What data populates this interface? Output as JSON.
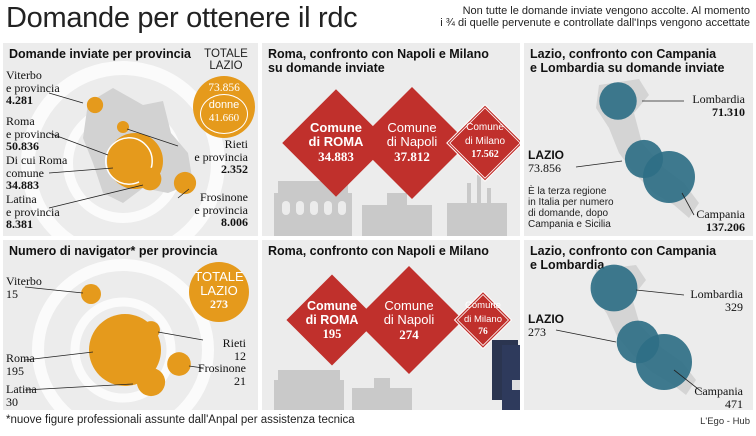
{
  "header": {
    "title": "Domande per ottenere il rdc",
    "subtitle_line1": "Non tutte le domande inviate vengono accolte. Al momento",
    "subtitle_line2": "i  ¾  di quelle pervenute e controllate dall'Inps vengono accettate"
  },
  "colors": {
    "orange": "#e59a1c",
    "red": "#c0302c",
    "blue": "#2f6f86",
    "panel_bg": "#ececec"
  },
  "panels": {
    "p1": {
      "title": "Domande inviate per provincia",
      "totale_label_1": "TOTALE",
      "totale_label_2": "LAZIO",
      "totale_value": "73.856",
      "donne_label": "donne",
      "donne_value": "41.660"
    },
    "p2": {
      "title_1": "Roma, confronto con Napoli e Milano",
      "title_2": "su domande inviate"
    },
    "p3": {
      "title_1": "Lazio, confronto con Campania",
      "title_2": "e Lombardia su domande inviate",
      "note_1": "È la terza regione",
      "note_2": "in Italia per numero",
      "note_3": "di domande, dopo",
      "note_4": "Campania e Sicilia"
    },
    "p4": {
      "title": "Numero di navigator* per provincia",
      "totale_label_1": "TOTALE",
      "totale_label_2": "LAZIO",
      "totale_value": "273"
    },
    "p5": {
      "title": "Roma, confronto con Napoli e Milano"
    },
    "p6": {
      "title_1": "Lazio, confronto con Campania",
      "title_2": "e Lombardia"
    }
  },
  "labels": {
    "viterbo_1": "Viterbo",
    "viterbo_2": "e provincia",
    "roma_1": "Roma",
    "roma_2": "e provincia",
    "di_cui_1": "Di cui Roma",
    "di_cui_2": "comune",
    "latina_1": "Latina",
    "latina_2": "e provincia",
    "rieti_1": "Rieti",
    "rieti_2": "e provincia",
    "frosinone_1": "Frosinone",
    "frosinone_2": "e provincia",
    "viterbo": "Viterbo",
    "roma": "Roma",
    "latina": "Latina",
    "rieti": "Rieti",
    "frosinone": "Frosinone",
    "comune_di": "Comune",
    "di_roma": "di ROMA",
    "di_napoli": "di Napoli",
    "di_milano": "di Milano",
    "lombardia": "Lombardia",
    "lazio": "LAZIO",
    "campania": "Campania"
  },
  "chart_data": [
    {
      "type": "bubble",
      "title": "Domande inviate per provincia",
      "categories": [
        "Viterbo e provincia",
        "Roma e provincia",
        "Di cui Roma comune",
        "Latina e provincia",
        "Rieti e provincia",
        "Frosinone e provincia"
      ],
      "values": [
        4281,
        50836,
        34883,
        8381,
        2352,
        8006
      ],
      "labels": [
        "4.281",
        "50.836",
        "34.883",
        "8.381",
        "2.352",
        "8.006"
      ],
      "total": "73.856",
      "donne": "41.660"
    },
    {
      "type": "diamond",
      "title": "Roma, confronto con Napoli e Milano su domande inviate",
      "categories": [
        "Comune di ROMA",
        "Comune di Napoli",
        "Comune di Milano"
      ],
      "values": [
        34883,
        37812,
        17562
      ],
      "labels": [
        "34.883",
        "37.812",
        "17.562"
      ]
    },
    {
      "type": "bubble-map",
      "title": "Lazio, confronto con Campania e Lombardia su domande inviate",
      "categories": [
        "Lombardia",
        "LAZIO",
        "Campania"
      ],
      "values": [
        71310,
        73856,
        137206
      ],
      "labels": [
        "71.310",
        "73.856",
        "137.206"
      ]
    },
    {
      "type": "bubble",
      "title": "Numero di navigator* per provincia",
      "categories": [
        "Viterbo",
        "Roma",
        "Latina",
        "Rieti",
        "Frosinone"
      ],
      "values": [
        15,
        195,
        30,
        12,
        21
      ],
      "labels": [
        "15",
        "195",
        "30",
        "12",
        "21"
      ],
      "total": "273"
    },
    {
      "type": "diamond",
      "title": "Roma, confronto con Napoli e Milano",
      "categories": [
        "Comune di ROMA",
        "Comune di Napoli",
        "Comune di Milano"
      ],
      "values": [
        195,
        274,
        76
      ],
      "labels": [
        "195",
        "274",
        "76"
      ]
    },
    {
      "type": "bubble-map",
      "title": "Lazio, confronto con Campania e Lombardia",
      "categories": [
        "Lombardia",
        "LAZIO",
        "Campania"
      ],
      "values": [
        329,
        273,
        471
      ],
      "labels": [
        "329",
        "273",
        "471"
      ]
    }
  ],
  "footer": {
    "footnote": "*nuove figure professionali assunte dall'Anpal per assistenza tecnica",
    "credit": "L'Ego - Hub"
  }
}
